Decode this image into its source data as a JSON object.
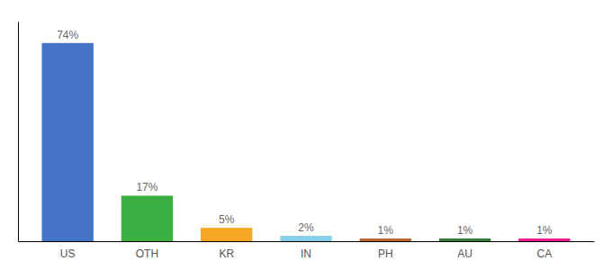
{
  "chart_data": {
    "type": "bar",
    "categories": [
      "US",
      "OTH",
      "KR",
      "IN",
      "PH",
      "AU",
      "CA"
    ],
    "values": [
      74,
      17,
      5,
      2,
      1,
      1,
      1
    ],
    "value_labels": [
      "74%",
      "17%",
      "5%",
      "2%",
      "1%",
      "1%",
      "1%"
    ],
    "colors": [
      "#4472C4",
      "#3CB043",
      "#F5A623",
      "#87CEEB",
      "#C0622C",
      "#2E7D32",
      "#E91E8C"
    ],
    "ylim": [
      0,
      82
    ],
    "data_labels": true,
    "tick_labels": "x"
  }
}
